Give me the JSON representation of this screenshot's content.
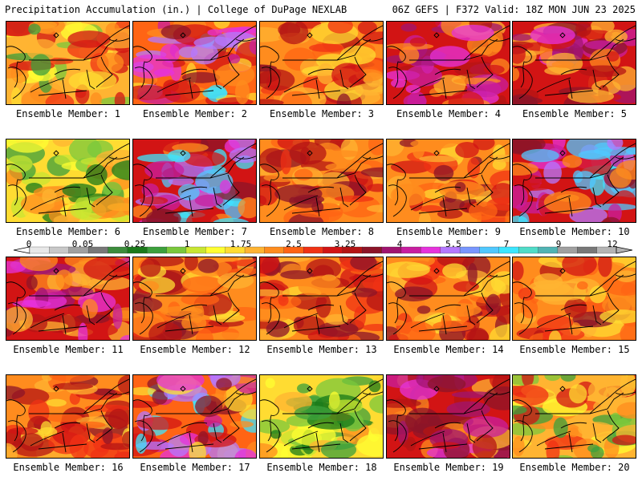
{
  "header": {
    "left": "Precipitation Accumulation (in.) | College of DuPage NEXLAB",
    "right": "06Z GEFS | F372 Valid: 18Z MON JUN 23 2025"
  },
  "colorbar": {
    "labels": [
      "0",
      "0.05",
      "0.25",
      "1",
      "1.75",
      "2.5",
      "3.25",
      "4",
      "5.5",
      "7",
      "9",
      "12"
    ],
    "colors": [
      "#e8e8e8",
      "#c8c8c8",
      "#a0a0a0",
      "#787878",
      "#3c8c3c",
      "#1a7a1a",
      "#3ca03c",
      "#7ac83c",
      "#c8e632",
      "#ffff32",
      "#ffdc32",
      "#ffb432",
      "#ff8c1e",
      "#ff6414",
      "#f03214",
      "#d21414",
      "#b41414",
      "#8c1428",
      "#a01470",
      "#c81ea0",
      "#e632dc",
      "#b478ff",
      "#7896ff",
      "#50c8ff",
      "#3ce6ff",
      "#50dcc8",
      "#50b4b4",
      "#a0a0a0",
      "#787878",
      "#b4b4b4"
    ]
  },
  "members": [
    {
      "label": "Ensemble Member: 1",
      "tone": "mixed"
    },
    {
      "label": "Ensemble Member: 2",
      "tone": "heavy"
    },
    {
      "label": "Ensemble Member: 3",
      "tone": "red"
    },
    {
      "label": "Ensemble Member: 4",
      "tone": "purple"
    },
    {
      "label": "Ensemble Member: 5",
      "tone": "purple"
    },
    {
      "label": "Ensemble Member: 6",
      "tone": "green"
    },
    {
      "label": "Ensemble Member: 7",
      "tone": "extreme"
    },
    {
      "label": "Ensemble Member: 8",
      "tone": "red"
    },
    {
      "label": "Ensemble Member: 9",
      "tone": "red"
    },
    {
      "label": "Ensemble Member: 10",
      "tone": "extreme"
    },
    {
      "label": "Ensemble Member: 11",
      "tone": "purple"
    },
    {
      "label": "Ensemble Member: 12",
      "tone": "red"
    },
    {
      "label": "Ensemble Member: 13",
      "tone": "red"
    },
    {
      "label": "Ensemble Member: 14",
      "tone": "red"
    },
    {
      "label": "Ensemble Member: 15",
      "tone": "red"
    },
    {
      "label": "Ensemble Member: 16",
      "tone": "red"
    },
    {
      "label": "Ensemble Member: 17",
      "tone": "heavy"
    },
    {
      "label": "Ensemble Member: 18",
      "tone": "green"
    },
    {
      "label": "Ensemble Member: 19",
      "tone": "purple"
    },
    {
      "label": "Ensemble Member: 20",
      "tone": "mixed"
    }
  ]
}
